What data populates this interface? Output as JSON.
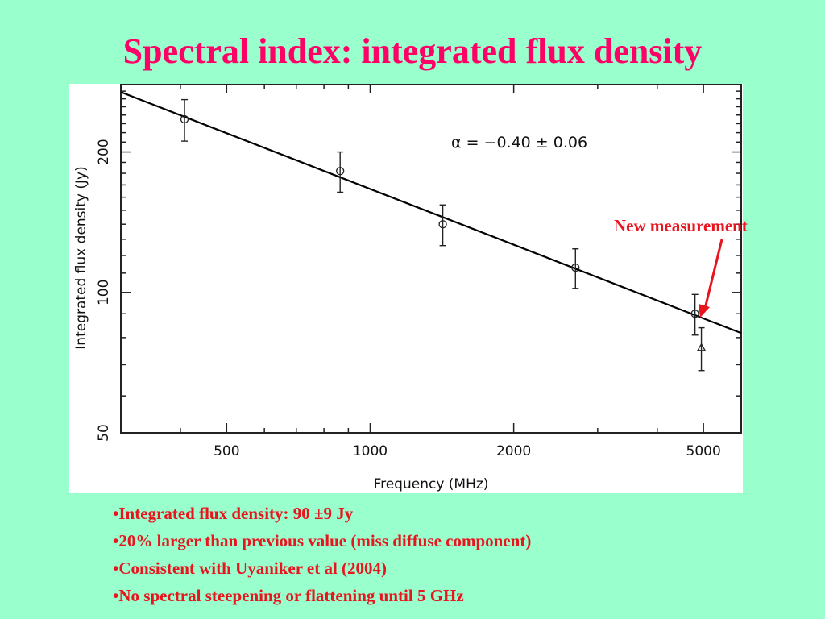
{
  "slide": {
    "title": "Spectral index: integrated flux density",
    "callout": "New measurement",
    "bullets": [
      "Integrated flux density: 90 ±9 Jy",
      "20% larger than previous value (miss diffuse component)",
      "Consistent with Uyaniker et al (2004)",
      "No spectral steepening or flattening  until 5 GHz"
    ],
    "colors": {
      "background": "#99ffcc",
      "title": "#ff0066",
      "accent": "#e8141e"
    }
  },
  "chart_data": {
    "type": "scatter",
    "title": "",
    "xlabel": "Frequency (MHz)",
    "ylabel": "Integrated flux density (Jy)",
    "xscale": "log",
    "yscale": "log",
    "xlim": [
      300,
      6000
    ],
    "ylim": [
      50,
      280
    ],
    "xticks": [
      500,
      1000,
      2000,
      5000
    ],
    "yticks": [
      50,
      100,
      200
    ],
    "annotation": "α = −0.40 ± 0.06",
    "fit_line": {
      "x": [
        300,
        6000
      ],
      "y": [
        268.8,
        81.8
      ]
    },
    "series": [
      {
        "marker": "circle",
        "points": [
          {
            "x": 408,
            "y": 235,
            "err": 24
          },
          {
            "x": 865,
            "y": 182,
            "err": 18
          },
          {
            "x": 1420,
            "y": 140,
            "err": 14
          },
          {
            "x": 2695,
            "y": 113,
            "err": 11
          },
          {
            "x": 4800,
            "y": 90,
            "err": 9
          }
        ]
      },
      {
        "marker": "triangle",
        "points": [
          {
            "x": 4950,
            "y": 76,
            "err": 8
          }
        ]
      }
    ]
  }
}
